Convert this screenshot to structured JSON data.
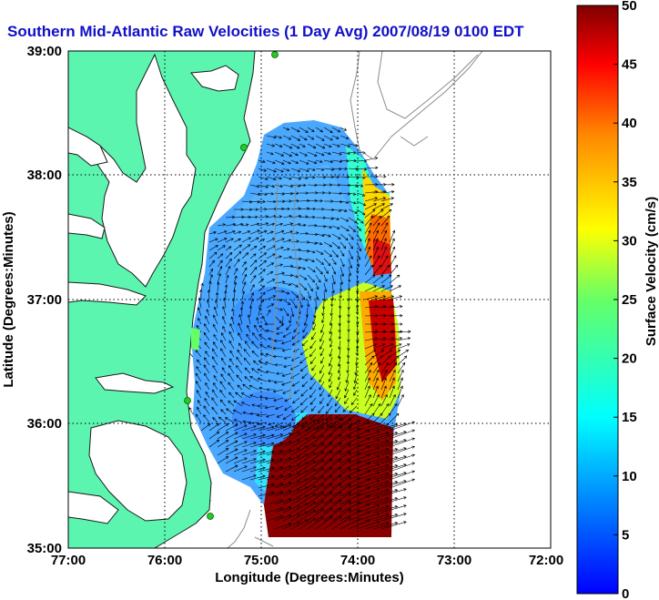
{
  "title": "Southern Mid-Atlantic Raw Velocities (1 Day Avg) 2007/08/19 0100 EDT",
  "map": {
    "x_axis_label": "Longitude (Degrees:Minutes)",
    "y_axis_label": "Latitude (Degrees:Minutes)",
    "x_ticks": [
      "77:00",
      "76:00",
      "75:00",
      "74:00",
      "73:00",
      "72:00"
    ],
    "y_ticks": [
      "39:00",
      "38:00",
      "37:00",
      "36:00",
      "35:00"
    ],
    "lon_range_west": [
      77,
      72
    ],
    "lat_range": [
      35,
      39
    ],
    "grid": "dotted",
    "land_color": "#5cf5b0",
    "bathymetry_color": "#8c8c8c",
    "station_marker_color": "#22cc22"
  },
  "colorbar": {
    "label": "Surface Velocity (cm/s)",
    "ticks": [
      "0",
      "5",
      "10",
      "15",
      "20",
      "25",
      "30",
      "35",
      "40",
      "45",
      "50"
    ],
    "range": [
      0,
      50
    ],
    "colormap": "jet"
  }
}
